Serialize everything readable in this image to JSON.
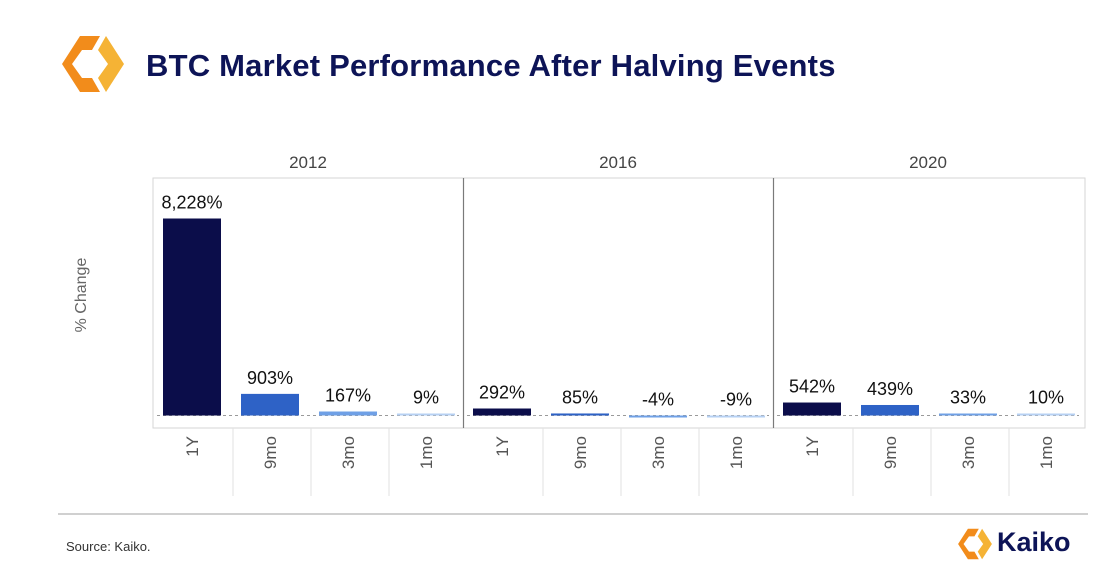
{
  "header": {
    "title": "BTC Market Performance After Halving Events",
    "logo_icon": "kaiko-logo-icon"
  },
  "colors": {
    "title": "#0d1457",
    "bar_1y": "#0b0d4a",
    "bar_9mo": "#2e62c6",
    "bar_3mo": "#6fa0e6",
    "bar_1mo": "#b6d0f3",
    "brand_orange": "#f5a11c"
  },
  "chart_data": {
    "type": "bar",
    "ylabel": "% Change",
    "categories": [
      "1Y",
      "9mo",
      "3mo",
      "1mo"
    ],
    "panels": [
      {
        "name": "2012",
        "values": [
          8228,
          903,
          167,
          9
        ],
        "labels": [
          "8,228%",
          "903%",
          "167%",
          "9%"
        ]
      },
      {
        "name": "2016",
        "values": [
          292,
          85,
          -4,
          -9
        ],
        "labels": [
          "292%",
          "85%",
          "-4%",
          "-9%"
        ]
      },
      {
        "name": "2020",
        "values": [
          542,
          439,
          33,
          10
        ],
        "labels": [
          "542%",
          "439%",
          "33%",
          "10%"
        ]
      }
    ],
    "ylim": [
      -10,
      8300
    ],
    "grid": false,
    "baseline": "dashed"
  },
  "footer": {
    "source": "Source: Kaiko.",
    "brand_name": "Kaiko",
    "brand_icon": "kaiko-logo-icon"
  }
}
